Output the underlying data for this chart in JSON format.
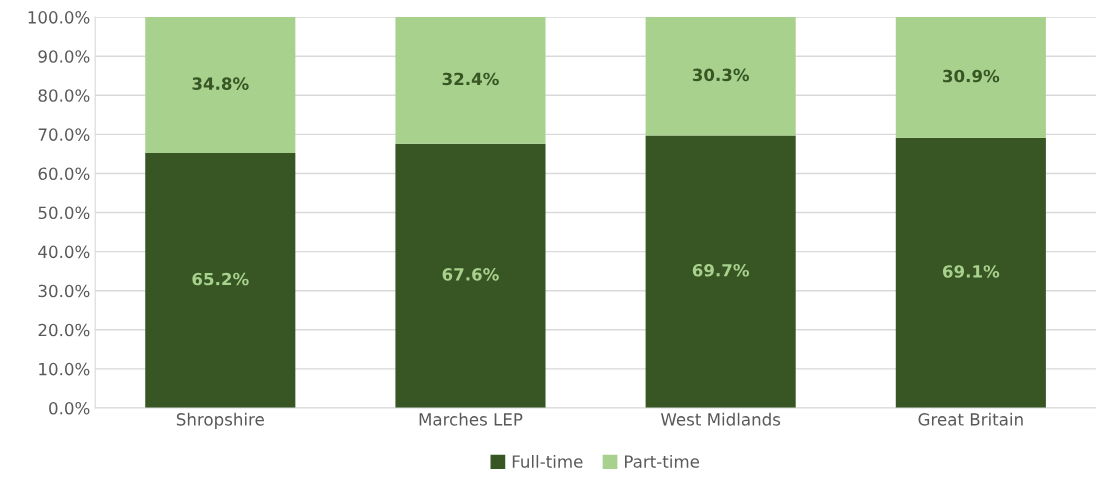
{
  "chart_data": {
    "type": "bar",
    "stacked": true,
    "categories": [
      "Shropshire",
      "Marches LEP",
      "West Midlands",
      "Great Britain"
    ],
    "series": [
      {
        "name": "Full-time",
        "color": "#375623",
        "values": [
          65.2,
          67.6,
          69.7,
          69.1
        ],
        "value_labels": [
          "65.2%",
          "67.6%",
          "69.7%",
          "69.1%"
        ]
      },
      {
        "name": "Part-time",
        "color": "#a9d18e",
        "values": [
          34.8,
          32.4,
          30.3,
          30.9
        ],
        "value_labels": [
          "34.8%",
          "32.4%",
          "30.3%",
          "30.9%"
        ]
      }
    ],
    "ylim": [
      0,
      100
    ],
    "yticks": [
      {
        "value": 0,
        "label": "0.0%"
      },
      {
        "value": 10,
        "label": "10.0%"
      },
      {
        "value": 20,
        "label": "20.0%"
      },
      {
        "value": 30,
        "label": "30.0%"
      },
      {
        "value": 40,
        "label": "40.0%"
      },
      {
        "value": 50,
        "label": "50.0%"
      },
      {
        "value": 60,
        "label": "60.0%"
      },
      {
        "value": 70,
        "label": "70.0%"
      },
      {
        "value": 80,
        "label": "80.0%"
      },
      {
        "value": 90,
        "label": "90.0%"
      },
      {
        "value": 100,
        "label": "100.0%"
      }
    ],
    "grid": "y",
    "legend": "bottom"
  }
}
